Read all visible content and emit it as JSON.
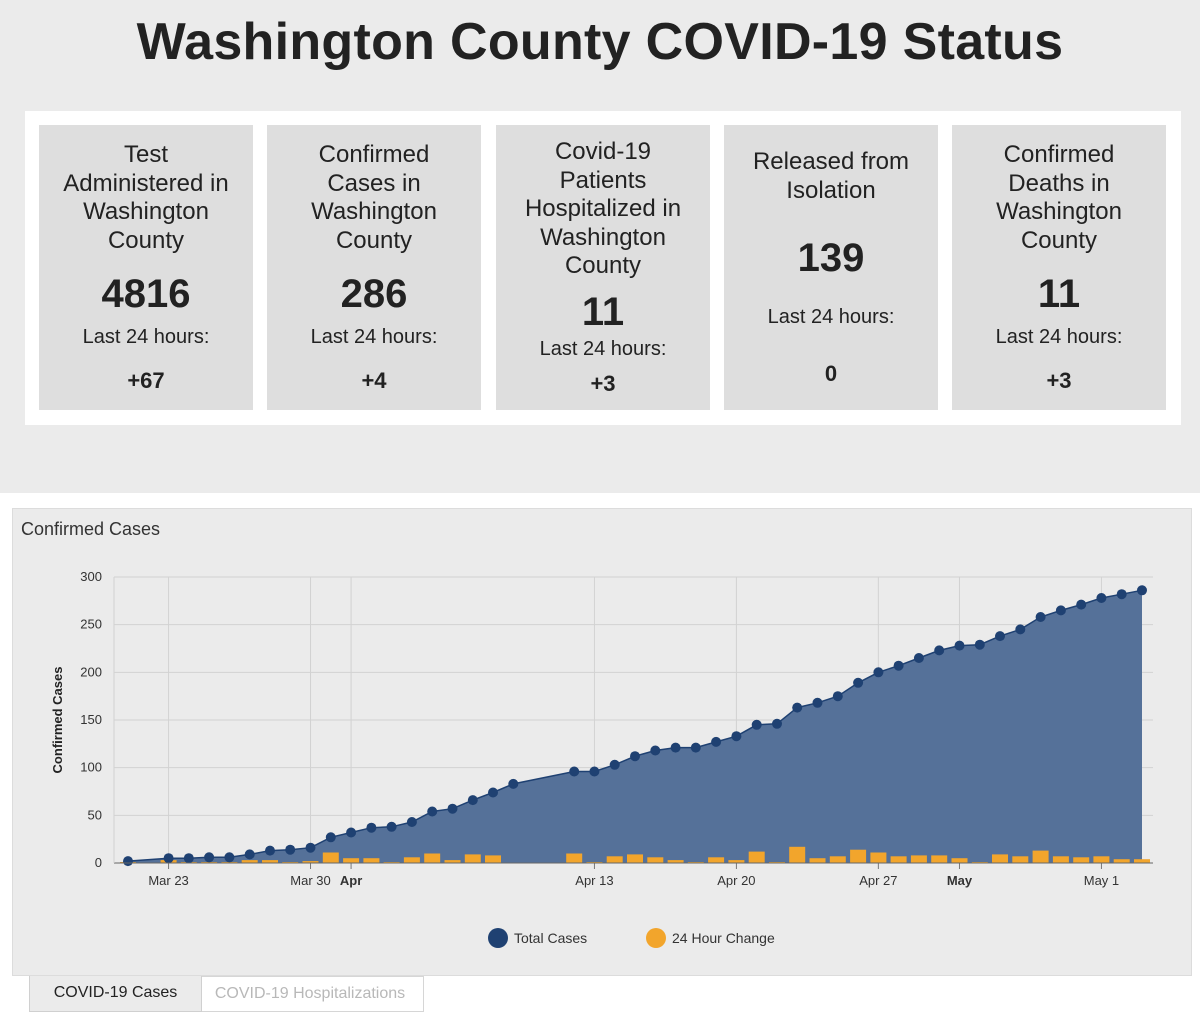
{
  "page": {
    "title": "Washington County COVID-19 Status"
  },
  "cards": [
    {
      "title_lines": [
        "Test",
        "Administered in",
        "Washington",
        "County"
      ],
      "value": "4816",
      "label": "Last 24 hours:",
      "delta": "+67"
    },
    {
      "title_lines": [
        "Confirmed",
        "Cases in",
        "Washington",
        "County"
      ],
      "value": "286",
      "label": "Last 24 hours:",
      "delta": "+4"
    },
    {
      "title_lines": [
        "Covid-19",
        "Patients",
        "Hospitalized in",
        "Washington",
        "County"
      ],
      "value": "11",
      "label": "Last 24 hours:",
      "delta": "+3"
    },
    {
      "title_lines": [
        "Released from",
        "Isolation"
      ],
      "value": "139",
      "label": "Last 24 hours:",
      "delta": "0"
    },
    {
      "title_lines": [
        "Confirmed",
        "Deaths in",
        "Washington",
        "County"
      ],
      "value": "11",
      "label": "Last 24 hours:",
      "delta": "+3"
    }
  ],
  "chart_data": {
    "type": "area",
    "title": "Confirmed Cases",
    "ylabel": "Confirmed Cases",
    "ylim": [
      0,
      300
    ],
    "yticks": [
      0,
      50,
      100,
      150,
      200,
      250,
      300
    ],
    "x_start": "Mar 21",
    "x_ticks": [
      {
        "label": "Mar 23",
        "day": 2,
        "bold": false
      },
      {
        "label": "Mar 30",
        "day": 9,
        "bold": false
      },
      {
        "label": "Apr",
        "day": 11,
        "bold": true
      },
      {
        "label": "Apr 13",
        "day": 23,
        "bold": false
      },
      {
        "label": "Apr 20",
        "day": 30,
        "bold": false
      },
      {
        "label": "Apr 27",
        "day": 37,
        "bold": false
      },
      {
        "label": "May",
        "day": 41,
        "bold": true
      },
      {
        "label": "May 1",
        "day": 48,
        "bold": false
      }
    ],
    "grid": true,
    "legend_position": "bottom-center",
    "series": [
      {
        "name": "Total Cases",
        "color": "#1f4172",
        "fill": "#557199",
        "type": "area",
        "points": [
          [
            0,
            2
          ],
          [
            2,
            5
          ],
          [
            3,
            5
          ],
          [
            4,
            6
          ],
          [
            5,
            6
          ],
          [
            6,
            9
          ],
          [
            7,
            13
          ],
          [
            8,
            14
          ],
          [
            9,
            16
          ],
          [
            10,
            27
          ],
          [
            11,
            32
          ],
          [
            12,
            37
          ],
          [
            13,
            38
          ],
          [
            14,
            43
          ],
          [
            15,
            54
          ],
          [
            16,
            57
          ],
          [
            17,
            66
          ],
          [
            18,
            74
          ],
          [
            19,
            83
          ],
          [
            22,
            96
          ],
          [
            23,
            96
          ],
          [
            24,
            103
          ],
          [
            25,
            112
          ],
          [
            26,
            118
          ],
          [
            27,
            121
          ],
          [
            28,
            121
          ],
          [
            29,
            127
          ],
          [
            30,
            133
          ],
          [
            31,
            145
          ],
          [
            32,
            146
          ],
          [
            33,
            163
          ],
          [
            34,
            168
          ],
          [
            35,
            175
          ],
          [
            36,
            189
          ],
          [
            37,
            200
          ],
          [
            38,
            207
          ],
          [
            39,
            215
          ],
          [
            40,
            223
          ],
          [
            41,
            228
          ],
          [
            42,
            229
          ],
          [
            43,
            238
          ],
          [
            44,
            245
          ],
          [
            45,
            258
          ],
          [
            46,
            265
          ],
          [
            47,
            271
          ],
          [
            48,
            278
          ],
          [
            49,
            282
          ],
          [
            50,
            286
          ]
        ]
      },
      {
        "name": "24 Hour Change",
        "color": "#f2a52c",
        "type": "bar",
        "points": [
          [
            0,
            1
          ],
          [
            2,
            3
          ],
          [
            3,
            1
          ],
          [
            4,
            1
          ],
          [
            5,
            1
          ],
          [
            6,
            3
          ],
          [
            7,
            3
          ],
          [
            8,
            1
          ],
          [
            9,
            2
          ],
          [
            10,
            11
          ],
          [
            11,
            5
          ],
          [
            12,
            5
          ],
          [
            13,
            1
          ],
          [
            14,
            6
          ],
          [
            15,
            10
          ],
          [
            16,
            3
          ],
          [
            17,
            9
          ],
          [
            18,
            8
          ],
          [
            22,
            10
          ],
          [
            23,
            1
          ],
          [
            24,
            7
          ],
          [
            25,
            9
          ],
          [
            26,
            6
          ],
          [
            27,
            3
          ],
          [
            28,
            1
          ],
          [
            29,
            6
          ],
          [
            30,
            3
          ],
          [
            31,
            12
          ],
          [
            32,
            1
          ],
          [
            33,
            17
          ],
          [
            34,
            5
          ],
          [
            35,
            7
          ],
          [
            36,
            14
          ],
          [
            37,
            11
          ],
          [
            38,
            7
          ],
          [
            39,
            8
          ],
          [
            40,
            8
          ],
          [
            41,
            5
          ],
          [
            42,
            1
          ],
          [
            43,
            9
          ],
          [
            44,
            7
          ],
          [
            45,
            13
          ],
          [
            46,
            7
          ],
          [
            47,
            6
          ],
          [
            48,
            7
          ],
          [
            49,
            4
          ],
          [
            50,
            4
          ]
        ]
      }
    ]
  },
  "legend": {
    "total_label": "Total Cases",
    "change_label": "24 Hour Change"
  },
  "tabs": [
    {
      "label": "COVID-19 Cases",
      "active": true
    },
    {
      "label": "COVID-19 Hospitalizations",
      "active": false
    }
  ],
  "colors": {
    "series_total": "#1f4172",
    "series_change": "#f2a52c",
    "panel_bg": "#ebebeb"
  }
}
